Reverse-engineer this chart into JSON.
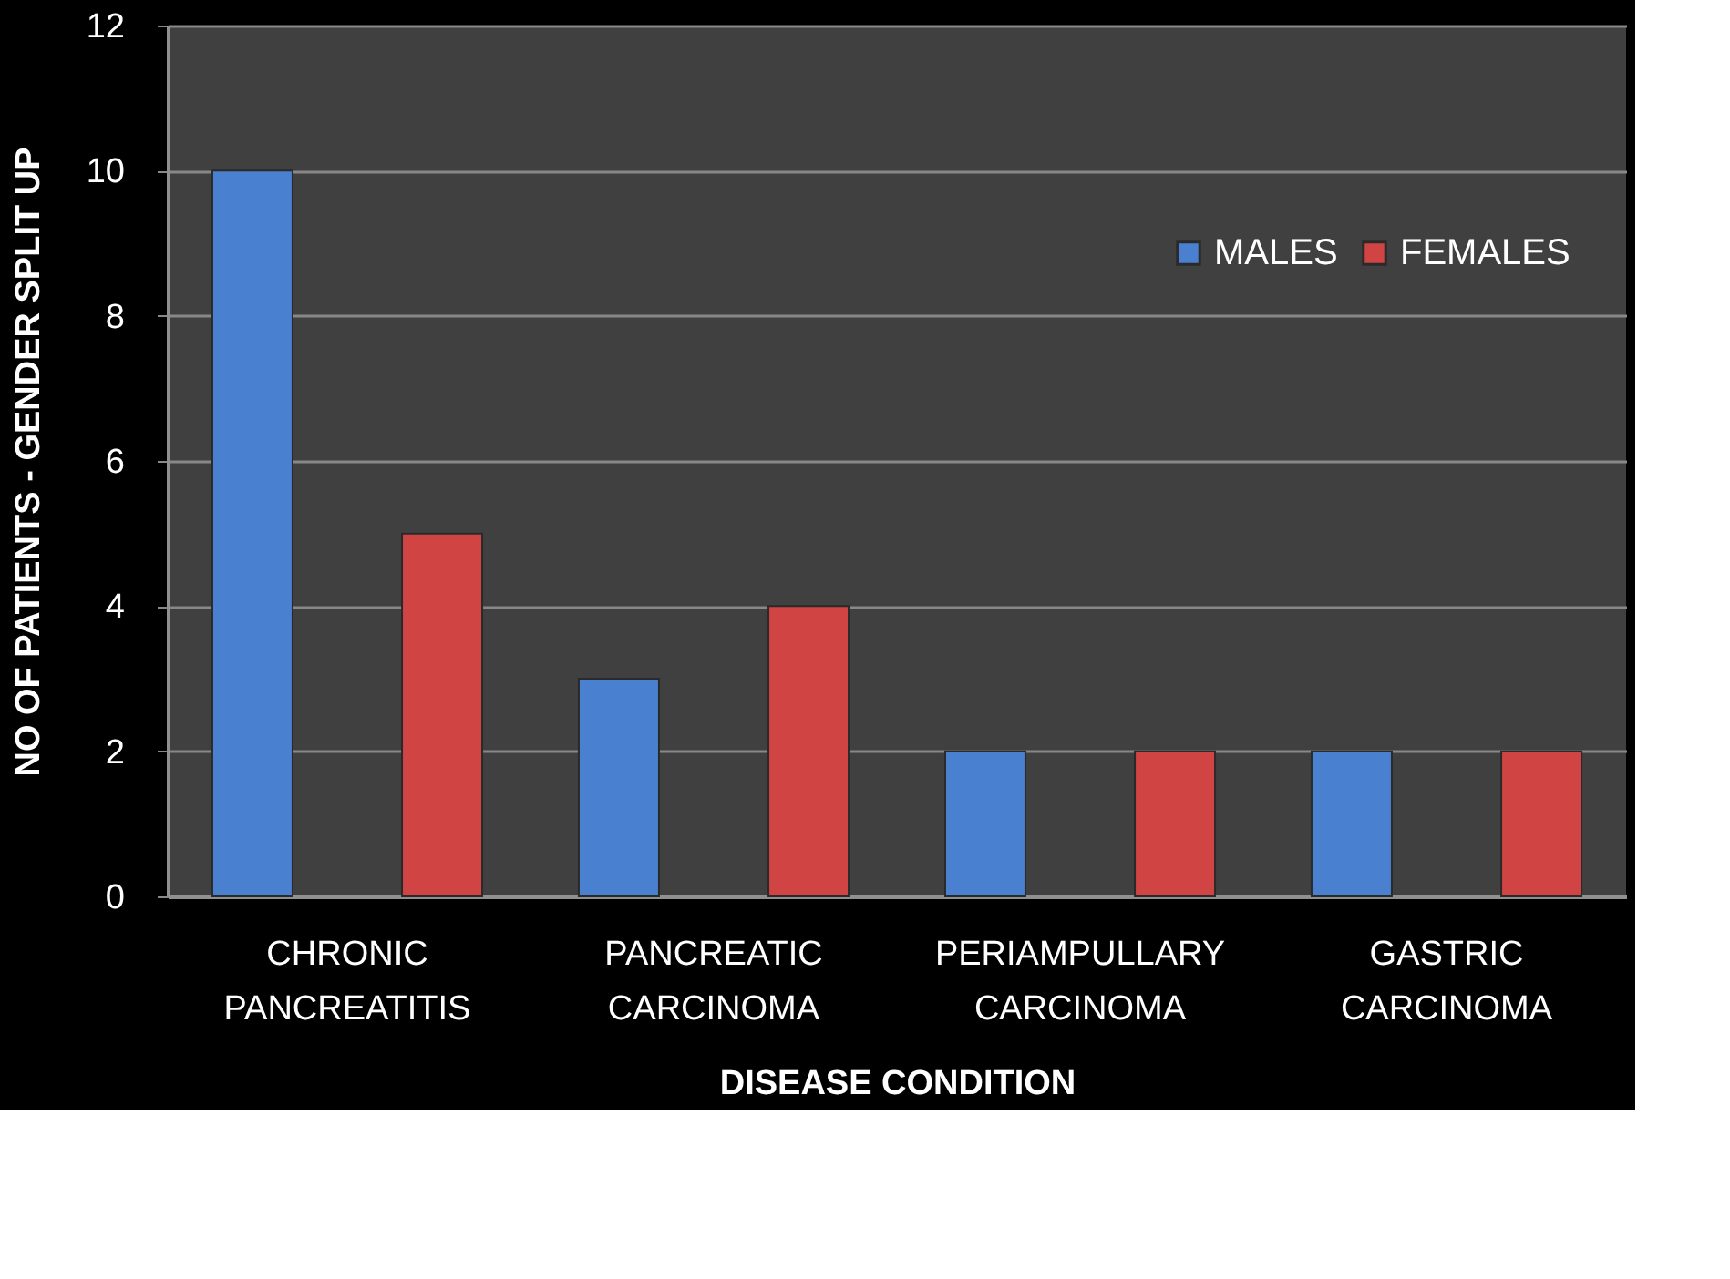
{
  "chart_data": {
    "type": "bar",
    "xlabel": "DISEASE CONDITION",
    "ylabel": "NO OF PATIENTS - GENDER SPLIT UP",
    "categories": [
      "CHRONIC PANCREATITIS",
      "PANCREATIC CARCINOMA",
      "PERIAMPULLARY CARCINOMA",
      "GASTRIC CARCINOMA"
    ],
    "series": [
      {
        "name": "MALES",
        "color": "#4a80d0",
        "values": [
          10,
          3,
          2,
          2
        ]
      },
      {
        "name": "FEMALES",
        "color": "#d04444",
        "values": [
          5,
          4,
          2,
          2
        ]
      }
    ],
    "ylim": [
      0,
      12
    ],
    "yticks": [
      0,
      2,
      4,
      6,
      8,
      10,
      12
    ],
    "grid": "y",
    "legend": "top right"
  }
}
